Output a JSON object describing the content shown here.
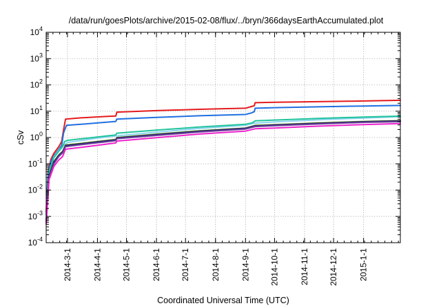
{
  "chart_data": {
    "type": "line",
    "title": "/data/run/goesPlots/archive/2015-02-08/flux/../bryn/366daysEarthAccumulated.plot",
    "xlabel": "Coordinated Universal Time (UTC)",
    "ylabel": "cSv",
    "y_scale": "log",
    "ylim": [
      0.0001,
      10000
    ],
    "xlim": [
      "2014-02-07",
      "2015-02-08"
    ],
    "grid": true,
    "legend": "none",
    "y_ticks": [
      {
        "value": 0.0001,
        "base": "10",
        "exp": "-4"
      },
      {
        "value": 0.001,
        "base": "10",
        "exp": "-3"
      },
      {
        "value": 0.01,
        "base": "10",
        "exp": "-2"
      },
      {
        "value": 0.1,
        "base": "10",
        "exp": "-1"
      },
      {
        "value": 1,
        "base": "10",
        "exp": "0"
      },
      {
        "value": 10,
        "base": "10",
        "exp": "1"
      },
      {
        "value": 100,
        "base": "10",
        "exp": "2"
      },
      {
        "value": 1000,
        "base": "10",
        "exp": "3"
      },
      {
        "value": 10000,
        "base": "10",
        "exp": "4"
      }
    ],
    "x_ticks": [
      {
        "date": "2014-03-01",
        "label": "2014-3-1"
      },
      {
        "date": "2014-04-01",
        "label": "2014-4-1"
      },
      {
        "date": "2014-05-01",
        "label": "2014-5-1"
      },
      {
        "date": "2014-06-01",
        "label": "2014-6-1"
      },
      {
        "date": "2014-07-01",
        "label": "2014-7-1"
      },
      {
        "date": "2014-08-01",
        "label": "2014-8-1"
      },
      {
        "date": "2014-09-01",
        "label": "2014-9-1"
      },
      {
        "date": "2014-10-01",
        "label": "2014-10-1"
      },
      {
        "date": "2014-11-01",
        "label": "2014-11-1"
      },
      {
        "date": "2014-12-01",
        "label": "2014-12-1"
      },
      {
        "date": "2015-01-01",
        "label": "2015-1-1"
      }
    ],
    "series": [
      {
        "color": "#e41a1c",
        "points": [
          [
            "2014-02-07",
            0.0015
          ],
          [
            "2014-02-09",
            0.05
          ],
          [
            "2014-02-12",
            0.15
          ],
          [
            "2014-02-15",
            0.25
          ],
          [
            "2014-02-20",
            0.45
          ],
          [
            "2014-02-23",
            0.7
          ],
          [
            "2014-02-25",
            2.0
          ],
          [
            "2014-02-27",
            5.0
          ],
          [
            "2014-03-15",
            5.6
          ],
          [
            "2014-04-10",
            6.3
          ],
          [
            "2014-04-20",
            6.6
          ],
          [
            "2014-04-21",
            9.2
          ],
          [
            "2014-06-01",
            10.5
          ],
          [
            "2014-07-15",
            11.8
          ],
          [
            "2014-09-01",
            13.0
          ],
          [
            "2014-09-07",
            15.0
          ],
          [
            "2014-09-10",
            16.0
          ],
          [
            "2014-09-11",
            21.0
          ],
          [
            "2014-10-01",
            21.8
          ],
          [
            "2014-11-15",
            23.0
          ],
          [
            "2015-01-01",
            24.5
          ],
          [
            "2015-02-08",
            26.0
          ]
        ]
      },
      {
        "color": "#1f6fe0",
        "points": [
          [
            "2014-02-07",
            0.001
          ],
          [
            "2014-02-09",
            0.04
          ],
          [
            "2014-02-12",
            0.12
          ],
          [
            "2014-02-15",
            0.2
          ],
          [
            "2014-02-20",
            0.35
          ],
          [
            "2014-02-23",
            0.5
          ],
          [
            "2014-02-25",
            1.5
          ],
          [
            "2014-02-28",
            2.9
          ],
          [
            "2014-03-20",
            3.3
          ],
          [
            "2014-04-20",
            4.1
          ],
          [
            "2014-04-21",
            5.0
          ],
          [
            "2014-06-01",
            5.8
          ],
          [
            "2014-07-15",
            6.7
          ],
          [
            "2014-09-01",
            7.5
          ],
          [
            "2014-09-07",
            8.6
          ],
          [
            "2014-09-10",
            9.5
          ],
          [
            "2014-09-11",
            13.0
          ],
          [
            "2014-10-01",
            13.6
          ],
          [
            "2014-11-15",
            14.7
          ],
          [
            "2015-01-01",
            15.8
          ],
          [
            "2015-02-08",
            16.5
          ]
        ]
      },
      {
        "color": "#8cd3f0",
        "points": [
          [
            "2014-02-07",
            0.001
          ],
          [
            "2014-02-10",
            0.05
          ],
          [
            "2014-02-15",
            0.18
          ],
          [
            "2014-02-20",
            0.32
          ],
          [
            "2014-02-25",
            0.5
          ],
          [
            "2014-03-01",
            0.65
          ],
          [
            "2014-04-01",
            0.95
          ],
          [
            "2014-04-20",
            1.15
          ],
          [
            "2014-06-01",
            1.6
          ],
          [
            "2014-07-15",
            2.2
          ],
          [
            "2014-09-01",
            2.9
          ],
          [
            "2014-09-10",
            3.5
          ],
          [
            "2014-10-01",
            3.9
          ],
          [
            "2014-11-15",
            4.7
          ],
          [
            "2015-01-01",
            5.5
          ],
          [
            "2015-02-08",
            6.2
          ]
        ]
      },
      {
        "color": "#20c49a",
        "points": [
          [
            "2014-02-07",
            0.0012
          ],
          [
            "2014-02-10",
            0.05
          ],
          [
            "2014-02-15",
            0.17
          ],
          [
            "2014-02-20",
            0.3
          ],
          [
            "2014-02-24",
            0.45
          ],
          [
            "2014-02-26",
            0.7
          ],
          [
            "2014-03-01",
            0.78
          ],
          [
            "2014-04-01",
            1.05
          ],
          [
            "2014-04-20",
            1.25
          ],
          [
            "2014-04-21",
            1.45
          ],
          [
            "2014-06-01",
            1.9
          ],
          [
            "2014-07-15",
            2.5
          ],
          [
            "2014-09-01",
            3.2
          ],
          [
            "2014-09-08",
            3.6
          ],
          [
            "2014-09-11",
            4.3
          ],
          [
            "2014-10-01",
            4.6
          ],
          [
            "2014-11-15",
            5.3
          ],
          [
            "2015-01-01",
            6.0
          ],
          [
            "2015-02-08",
            6.5
          ]
        ]
      },
      {
        "color": "#7fbf3f",
        "points": [
          [
            "2014-02-07",
            0.0006
          ],
          [
            "2014-02-10",
            0.035
          ],
          [
            "2014-02-15",
            0.12
          ],
          [
            "2014-02-20",
            0.22
          ],
          [
            "2014-02-24",
            0.3
          ],
          [
            "2014-02-27",
            0.52
          ],
          [
            "2014-03-15",
            0.6
          ],
          [
            "2014-04-20",
            0.85
          ],
          [
            "2014-04-21",
            1.0
          ],
          [
            "2014-06-01",
            1.35
          ],
          [
            "2014-07-15",
            1.8
          ],
          [
            "2014-09-01",
            2.3
          ],
          [
            "2014-09-11",
            2.9
          ],
          [
            "2014-10-01",
            3.1
          ],
          [
            "2014-11-15",
            3.6
          ],
          [
            "2015-01-01",
            4.1
          ],
          [
            "2015-02-08",
            4.4
          ]
        ]
      },
      {
        "color": "#222222",
        "points": [
          [
            "2014-02-07",
            0.0006
          ],
          [
            "2014-02-10",
            0.035
          ],
          [
            "2014-02-15",
            0.12
          ],
          [
            "2014-02-20",
            0.21
          ],
          [
            "2014-02-24",
            0.29
          ],
          [
            "2014-02-27",
            0.5
          ],
          [
            "2014-03-15",
            0.58
          ],
          [
            "2014-04-20",
            0.82
          ],
          [
            "2014-04-21",
            0.97
          ],
          [
            "2014-06-01",
            1.3
          ],
          [
            "2014-07-15",
            1.75
          ],
          [
            "2014-09-01",
            2.25
          ],
          [
            "2014-09-11",
            2.8
          ],
          [
            "2014-10-01",
            3.0
          ],
          [
            "2014-11-15",
            3.5
          ],
          [
            "2015-01-01",
            4.0
          ],
          [
            "2015-02-08",
            4.3
          ]
        ]
      },
      {
        "color": "#2a2a7a",
        "points": [
          [
            "2014-02-07",
            0.0006
          ],
          [
            "2014-02-10",
            0.033
          ],
          [
            "2014-02-15",
            0.11
          ],
          [
            "2014-02-20",
            0.2
          ],
          [
            "2014-02-24",
            0.28
          ],
          [
            "2014-02-27",
            0.48
          ],
          [
            "2014-03-15",
            0.56
          ],
          [
            "2014-04-20",
            0.8
          ],
          [
            "2014-04-21",
            0.94
          ],
          [
            "2014-06-01",
            1.27
          ],
          [
            "2014-07-15",
            1.7
          ],
          [
            "2014-09-01",
            2.2
          ],
          [
            "2014-09-11",
            2.75
          ],
          [
            "2014-10-01",
            2.95
          ],
          [
            "2014-11-15",
            3.4
          ],
          [
            "2015-01-01",
            3.9
          ],
          [
            "2015-02-08",
            4.2
          ]
        ]
      },
      {
        "color": "#6a3d9a",
        "points": [
          [
            "2014-02-07",
            0.0006
          ],
          [
            "2014-02-10",
            0.03
          ],
          [
            "2014-02-15",
            0.1
          ],
          [
            "2014-02-20",
            0.19
          ],
          [
            "2014-02-24",
            0.26
          ],
          [
            "2014-02-27",
            0.45
          ],
          [
            "2014-03-15",
            0.53
          ],
          [
            "2014-04-20",
            0.76
          ],
          [
            "2014-04-21",
            0.9
          ],
          [
            "2014-06-01",
            1.2
          ],
          [
            "2014-07-15",
            1.62
          ],
          [
            "2014-09-01",
            2.1
          ],
          [
            "2014-09-11",
            2.6
          ],
          [
            "2014-10-01",
            2.8
          ],
          [
            "2014-11-15",
            3.25
          ],
          [
            "2015-01-01",
            3.75
          ],
          [
            "2015-02-08",
            4.0
          ]
        ]
      },
      {
        "color": "#ee22cc",
        "points": [
          [
            "2014-02-07",
            0.0005
          ],
          [
            "2014-02-10",
            0.025
          ],
          [
            "2014-02-15",
            0.08
          ],
          [
            "2014-02-20",
            0.14
          ],
          [
            "2014-02-24",
            0.19
          ],
          [
            "2014-02-27",
            0.36
          ],
          [
            "2014-03-15",
            0.42
          ],
          [
            "2014-04-20",
            0.62
          ],
          [
            "2014-04-21",
            0.73
          ],
          [
            "2014-06-01",
            0.98
          ],
          [
            "2014-07-15",
            1.35
          ],
          [
            "2014-09-01",
            1.75
          ],
          [
            "2014-09-11",
            2.15
          ],
          [
            "2014-10-01",
            2.3
          ],
          [
            "2014-11-15",
            2.7
          ],
          [
            "2015-01-01",
            3.1
          ],
          [
            "2015-02-08",
            3.4
          ]
        ]
      }
    ]
  }
}
